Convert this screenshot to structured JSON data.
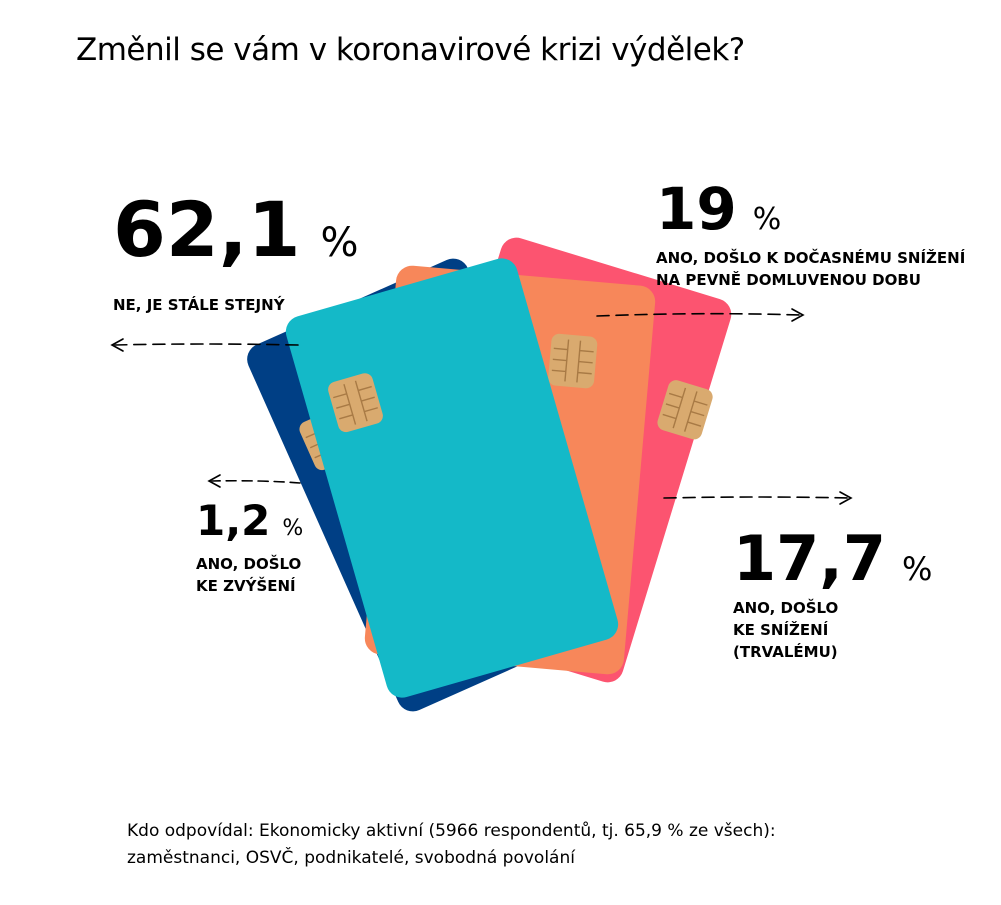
{
  "title": "Změnil se vám v koronavirové krizi výdělek?",
  "chart_data": {
    "type": "pie",
    "unit": "%",
    "slices": [
      {
        "label": "NE, JE STÁLE STEJNÝ",
        "value": 62.1,
        "display": "62,1",
        "color": "#14b9c8"
      },
      {
        "label": "ANO, DOŠLO K DOČASNÉMU SNÍŽENÍ NA PEVNĚ DOMLUVENOU DOBU",
        "value": 19,
        "display": "19",
        "color": "#f7875a"
      },
      {
        "label": "ANO, DOŠLO KE SNÍŽENÍ (TRVALÉMU)",
        "value": 17.7,
        "display": "17,7",
        "color": "#fc5470"
      },
      {
        "label": "ANO, DOŠLO KE ZVÝŠENÍ",
        "value": 1.2,
        "display": "1,2",
        "color": "#003f85"
      }
    ]
  },
  "labels": {
    "same_line1": "NE, JE STÁLE STEJNÝ",
    "temp_line1": "ANO, DOŠLO K DOČASNÉMU SNÍŽENÍ",
    "temp_line2": "NA PEVNĚ DOMLUVENOU DOBU",
    "perm_line1": "ANO, DOŠLO",
    "perm_line2": "KE SNÍŽENÍ",
    "perm_line3": "(TRVALÉMU)",
    "inc_line1": "ANO, DOŠLO",
    "inc_line2": "KE ZVÝŠENÍ"
  },
  "percent_sign": "%",
  "footer": {
    "line1": "Kdo odpovídal: Ekonomicky aktivní (5966 respondentů, tj. 65,9 % ze všech):",
    "line2": "zaměstnanci, OSVČ, podnikatelé, svobodná povolání"
  },
  "colors": {
    "chip": "#d9aa6f",
    "chip_dark": "#a87a45",
    "text": "#000000"
  }
}
